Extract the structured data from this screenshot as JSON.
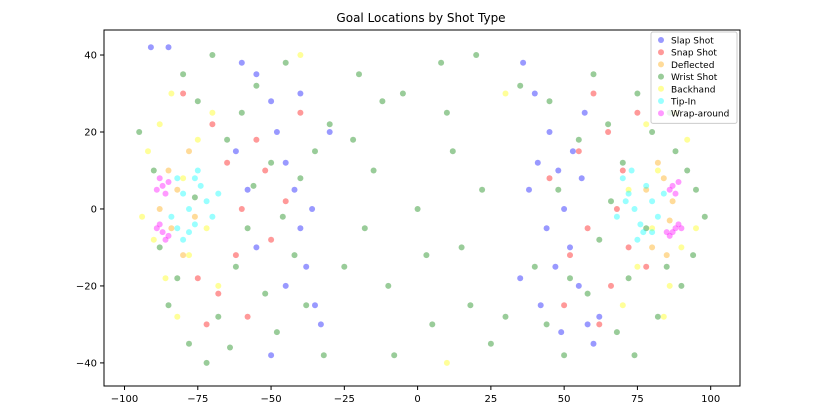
{
  "chart_data": {
    "type": "scatter",
    "title": "Goal Locations by Shot Type",
    "xlabel": "",
    "ylabel": "",
    "xlim": [
      -107,
      110
    ],
    "ylim": [
      -46,
      46.5
    ],
    "xticks": [
      -100,
      -75,
      -50,
      -25,
      0,
      25,
      50,
      75,
      100
    ],
    "yticks": [
      -40,
      -20,
      0,
      20,
      40
    ],
    "xtick_labels": [
      "−100",
      "−75",
      "−50",
      "−25",
      "0",
      "25",
      "50",
      "75",
      "100"
    ],
    "ytick_labels": [
      "−40",
      "−20",
      "0",
      "20",
      "40"
    ],
    "grid": false,
    "legend_position": "top-right",
    "marker_alpha": 0.4,
    "series": [
      {
        "name": "Slap Shot",
        "color": "#0000ff",
        "points": [
          [
            -91,
            42
          ],
          [
            -85,
            42
          ],
          [
            -60,
            38
          ],
          [
            -55,
            35
          ],
          [
            -50,
            28
          ],
          [
            -48,
            20
          ],
          [
            -45,
            12
          ],
          [
            -42,
            5
          ],
          [
            -40,
            -5
          ],
          [
            -38,
            -15
          ],
          [
            -35,
            -25
          ],
          [
            -33,
            -30
          ],
          [
            -50,
            -38
          ],
          [
            -55,
            -10
          ],
          [
            -58,
            5
          ],
          [
            -45,
            -20
          ],
          [
            -30,
            20
          ],
          [
            -62,
            15
          ],
          [
            -40,
            30
          ],
          [
            -36,
            0
          ],
          [
            36,
            38
          ],
          [
            40,
            30
          ],
          [
            45,
            20
          ],
          [
            48,
            10
          ],
          [
            50,
            0
          ],
          [
            52,
            -10
          ],
          [
            55,
            -20
          ],
          [
            58,
            -30
          ],
          [
            60,
            -35
          ],
          [
            42,
            -25
          ],
          [
            47,
            -15
          ],
          [
            53,
            15
          ],
          [
            57,
            25
          ],
          [
            38,
            5
          ],
          [
            44,
            -5
          ],
          [
            62,
            -28
          ],
          [
            35,
            -18
          ],
          [
            49,
            -32
          ],
          [
            56,
            8
          ],
          [
            41,
            12
          ]
        ]
      },
      {
        "name": "Snap Shot",
        "color": "#ff0000",
        "points": [
          [
            -80,
            30
          ],
          [
            -70,
            22
          ],
          [
            -65,
            12
          ],
          [
            -60,
            0
          ],
          [
            -62,
            -12
          ],
          [
            -68,
            -22
          ],
          [
            -72,
            -30
          ],
          [
            -55,
            18
          ],
          [
            -50,
            -8
          ],
          [
            -58,
            -28
          ],
          [
            -45,
            2
          ],
          [
            -75,
            -18
          ],
          [
            -40,
            25
          ],
          [
            -52,
            10
          ],
          [
            60,
            30
          ],
          [
            65,
            20
          ],
          [
            70,
            10
          ],
          [
            68,
            0
          ],
          [
            72,
            -10
          ],
          [
            66,
            -20
          ],
          [
            62,
            -30
          ],
          [
            55,
            15
          ],
          [
            58,
            -5
          ],
          [
            75,
            25
          ],
          [
            50,
            -25
          ],
          [
            78,
            -15
          ],
          [
            45,
            8
          ],
          [
            52,
            -12
          ]
        ]
      },
      {
        "name": "Deflected",
        "color": "#ffa500",
        "points": [
          [
            -85,
            10
          ],
          [
            -82,
            5
          ],
          [
            -84,
            -5
          ],
          [
            -80,
            -12
          ],
          [
            -78,
            15
          ],
          [
            -76,
            -2
          ],
          [
            -88,
            0
          ],
          [
            84,
            8
          ],
          [
            86,
            -3
          ],
          [
            82,
            12
          ],
          [
            80,
            -10
          ],
          [
            87,
            2
          ],
          [
            78,
            5
          ],
          [
            85,
            -12
          ]
        ]
      },
      {
        "name": "Wrist Shot",
        "color": "#008000",
        "points": [
          [
            -95,
            20
          ],
          [
            -90,
            10
          ],
          [
            -88,
            -10
          ],
          [
            -85,
            -25
          ],
          [
            -80,
            35
          ],
          [
            -78,
            -35
          ],
          [
            -75,
            28
          ],
          [
            -72,
            -40
          ],
          [
            -70,
            40
          ],
          [
            -68,
            -28
          ],
          [
            -65,
            18
          ],
          [
            -62,
            -15
          ],
          [
            -60,
            25
          ],
          [
            -58,
            -5
          ],
          [
            -55,
            32
          ],
          [
            -52,
            -22
          ],
          [
            -50,
            12
          ],
          [
            -48,
            -32
          ],
          [
            -45,
            38
          ],
          [
            -42,
            -12
          ],
          [
            -40,
            8
          ],
          [
            -38,
            -25
          ],
          [
            -35,
            15
          ],
          [
            -32,
            -38
          ],
          [
            -30,
            22
          ],
          [
            -82,
            -18
          ],
          [
            -76,
            3
          ],
          [
            -64,
            -36
          ],
          [
            -56,
            6
          ],
          [
            -46,
            -2
          ],
          [
            -20,
            35
          ],
          [
            -15,
            10
          ],
          [
            -10,
            -20
          ],
          [
            -5,
            30
          ],
          [
            0,
            0
          ],
          [
            5,
            -30
          ],
          [
            10,
            25
          ],
          [
            15,
            -10
          ],
          [
            20,
            40
          ],
          [
            -25,
            -15
          ],
          [
            25,
            -35
          ],
          [
            -18,
            -5
          ],
          [
            12,
            15
          ],
          [
            -8,
            -38
          ],
          [
            8,
            38
          ],
          [
            18,
            -25
          ],
          [
            -12,
            28
          ],
          [
            3,
            -12
          ],
          [
            -22,
            18
          ],
          [
            22,
            5
          ],
          [
            30,
            -28
          ],
          [
            35,
            32
          ],
          [
            40,
            -15
          ],
          [
            45,
            28
          ],
          [
            50,
            -38
          ],
          [
            55,
            18
          ],
          [
            58,
            -22
          ],
          [
            60,
            35
          ],
          [
            62,
            -8
          ],
          [
            65,
            22
          ],
          [
            68,
            -32
          ],
          [
            70,
            12
          ],
          [
            72,
            -18
          ],
          [
            75,
            30
          ],
          [
            78,
            -5
          ],
          [
            80,
            20
          ],
          [
            82,
            -28
          ],
          [
            85,
            -15
          ],
          [
            88,
            15
          ],
          [
            90,
            -20
          ],
          [
            92,
            10
          ],
          [
            95,
            5
          ],
          [
            98,
            -2
          ],
          [
            48,
            5
          ],
          [
            52,
            -18
          ],
          [
            66,
            2
          ],
          [
            74,
            -38
          ],
          [
            86,
            25
          ],
          [
            94,
            -12
          ],
          [
            44,
            -30
          ]
        ]
      },
      {
        "name": "Backhand",
        "color": "#ffff00",
        "points": [
          [
            -92,
            15
          ],
          [
            -90,
            -8
          ],
          [
            -88,
            22
          ],
          [
            -86,
            -18
          ],
          [
            -84,
            30
          ],
          [
            -82,
            -28
          ],
          [
            -80,
            8
          ],
          [
            -78,
            -12
          ],
          [
            -75,
            18
          ],
          [
            -72,
            -5
          ],
          [
            -94,
            -2
          ],
          [
            -70,
            25
          ],
          [
            -68,
            -20
          ],
          [
            92,
            18
          ],
          [
            90,
            -10
          ],
          [
            88,
            25
          ],
          [
            86,
            -20
          ],
          [
            84,
            -28
          ],
          [
            82,
            10
          ],
          [
            80,
            -5
          ],
          [
            78,
            22
          ],
          [
            75,
            -15
          ],
          [
            95,
            -5
          ],
          [
            72,
            5
          ],
          [
            70,
            -25
          ],
          [
            -40,
            40
          ],
          [
            10,
            -40
          ],
          [
            30,
            30
          ]
        ]
      },
      {
        "name": "Tip-In",
        "color": "#00ffff",
        "points": [
          [
            -82,
            8
          ],
          [
            -80,
            4
          ],
          [
            -78,
            0
          ],
          [
            -76,
            -4
          ],
          [
            -74,
            6
          ],
          [
            -72,
            2
          ],
          [
            -84,
            -2
          ],
          [
            -80,
            -8
          ],
          [
            -75,
            10
          ],
          [
            -70,
            -2
          ],
          [
            -78,
            -6
          ],
          [
            -68,
            4
          ],
          [
            -76,
            8
          ],
          [
            -82,
            -5
          ],
          [
            70,
            8
          ],
          [
            72,
            4
          ],
          [
            74,
            0
          ],
          [
            76,
            -4
          ],
          [
            78,
            6
          ],
          [
            80,
            2
          ],
          [
            82,
            -2
          ],
          [
            75,
            -8
          ],
          [
            68,
            -2
          ],
          [
            73,
            10
          ],
          [
            77,
            -6
          ],
          [
            80,
            -6
          ],
          [
            84,
            4
          ],
          [
            71,
            2
          ]
        ]
      },
      {
        "name": "Wrap-around",
        "color": "#ff00ff",
        "points": [
          [
            -88,
            8
          ],
          [
            -87,
            6
          ],
          [
            -89,
            5
          ],
          [
            -86,
            4
          ],
          [
            -88,
            -4
          ],
          [
            -87,
            -6
          ],
          [
            -86,
            -8
          ],
          [
            -89,
            -5
          ],
          [
            -85,
            7
          ],
          [
            -85,
            -7
          ],
          [
            87,
            6
          ],
          [
            88,
            4
          ],
          [
            86,
            5
          ],
          [
            89,
            7
          ],
          [
            88,
            -5
          ],
          [
            87,
            -6
          ],
          [
            86,
            -7
          ],
          [
            89,
            -4
          ],
          [
            85,
            -6
          ],
          [
            90,
            -5
          ]
        ]
      }
    ]
  }
}
